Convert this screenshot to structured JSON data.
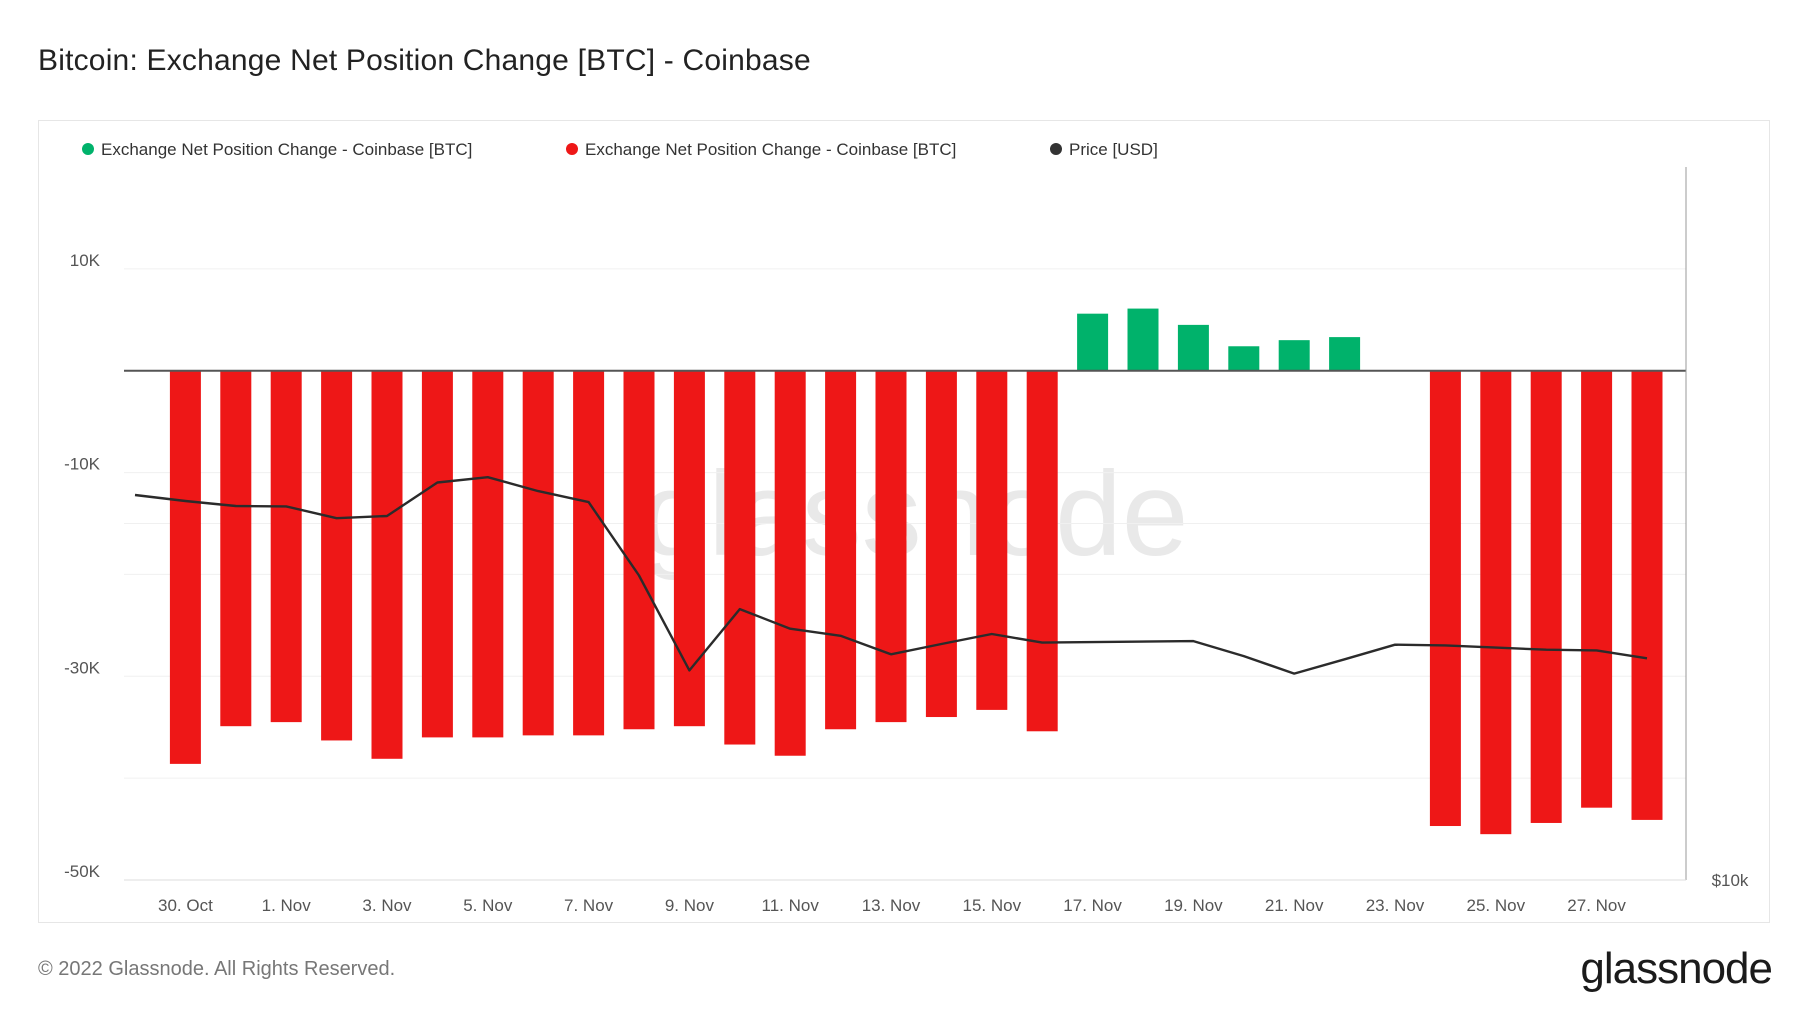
{
  "header": {
    "title": "Bitcoin: Exchange Net Position Change [BTC] - Coinbase"
  },
  "footer": {
    "copyright": "© 2022 Glassnode. All Rights Reserved.",
    "logo": "glassnode"
  },
  "watermark": "glassnode",
  "colors": {
    "positive": "#00b26b",
    "negative": "#ee1717",
    "price": "#2b2b2b",
    "zero_line": "#555555",
    "grid": "#f0f0f0"
  },
  "chart_data": {
    "type": "bar",
    "title": "Bitcoin: Exchange Net Position Change [BTC] - Coinbase",
    "legend": [
      {
        "label": "Exchange Net Position Change - Coinbase [BTC]",
        "color": "#00b26b"
      },
      {
        "label": "Exchange Net Position Change - Coinbase [BTC]",
        "color": "#ee1717"
      },
      {
        "label": "Price [USD]",
        "color": "#333333"
      }
    ],
    "legend_placement": "top-left",
    "y_ticks": [
      "10K",
      "-10K",
      "-30K",
      "-50K"
    ],
    "y_tick_values": [
      10000,
      -10000,
      -30000,
      -50000
    ],
    "ylim": [
      -50000,
      20000
    ],
    "right_axis_tick": "$10k",
    "x_tick_labels": [
      "30. Oct",
      "1. Nov",
      "3. Nov",
      "5. Nov",
      "7. Nov",
      "9. Nov",
      "11. Nov",
      "13. Nov",
      "15. Nov",
      "17. Nov",
      "19. Nov",
      "21. Nov",
      "23. Nov",
      "25. Nov",
      "27. Nov"
    ],
    "x_dates": [
      "2022-10-29",
      "2022-10-30",
      "2022-10-31",
      "2022-11-01",
      "2022-11-02",
      "2022-11-03",
      "2022-11-04",
      "2022-11-05",
      "2022-11-06",
      "2022-11-07",
      "2022-11-08",
      "2022-11-09",
      "2022-11-10",
      "2022-11-11",
      "2022-11-12",
      "2022-11-13",
      "2022-11-14",
      "2022-11-15",
      "2022-11-16",
      "2022-11-17",
      "2022-11-18",
      "2022-11-19",
      "2022-11-20",
      "2022-11-21",
      "2022-11-22",
      "2022-11-23",
      "2022-11-24",
      "2022-11-25",
      "2022-11-26",
      "2022-11-27",
      "2022-11-28",
      "2022-11-29",
      "2022-11-30"
    ],
    "bars": [
      {
        "date": "2022-10-30",
        "value": -38600
      },
      {
        "date": "2022-10-31",
        "value": -34900
      },
      {
        "date": "2022-11-01",
        "value": -34500
      },
      {
        "date": "2022-11-02",
        "value": -36300
      },
      {
        "date": "2022-11-03",
        "value": -38100
      },
      {
        "date": "2022-11-04",
        "value": -36000
      },
      {
        "date": "2022-11-05",
        "value": -36000
      },
      {
        "date": "2022-11-06",
        "value": -35800
      },
      {
        "date": "2022-11-07",
        "value": -35800
      },
      {
        "date": "2022-11-08",
        "value": -35200
      },
      {
        "date": "2022-11-09",
        "value": -34900
      },
      {
        "date": "2022-11-10",
        "value": -36700
      },
      {
        "date": "2022-11-11",
        "value": -37800
      },
      {
        "date": "2022-11-12",
        "value": -35200
      },
      {
        "date": "2022-11-13",
        "value": -34500
      },
      {
        "date": "2022-11-14",
        "value": -34000
      },
      {
        "date": "2022-11-15",
        "value": -33300
      },
      {
        "date": "2022-11-16",
        "value": -35400
      },
      {
        "date": "2022-11-17",
        "value": 5600
      },
      {
        "date": "2022-11-18",
        "value": 6100
      },
      {
        "date": "2022-11-19",
        "value": 4500
      },
      {
        "date": "2022-11-20",
        "value": 2400
      },
      {
        "date": "2022-11-21",
        "value": 3000
      },
      {
        "date": "2022-11-22",
        "value": 3300
      },
      {
        "date": "2022-11-24",
        "value": -44700
      },
      {
        "date": "2022-11-25",
        "value": -45500
      },
      {
        "date": "2022-11-26",
        "value": -44400
      },
      {
        "date": "2022-11-27",
        "value": -42900
      },
      {
        "date": "2022-11-28",
        "value": -44100
      }
    ],
    "price_series": [
      {
        "date": "2022-10-29",
        "value": 20800
      },
      {
        "date": "2022-10-30",
        "value": 20630
      },
      {
        "date": "2022-10-31",
        "value": 20490
      },
      {
        "date": "2022-11-01",
        "value": 20480
      },
      {
        "date": "2022-11-02",
        "value": 20150
      },
      {
        "date": "2022-11-03",
        "value": 20210
      },
      {
        "date": "2022-11-04",
        "value": 21150
      },
      {
        "date": "2022-11-05",
        "value": 21300
      },
      {
        "date": "2022-11-06",
        "value": 20910
      },
      {
        "date": "2022-11-07",
        "value": 20600
      },
      {
        "date": "2022-11-08",
        "value": 18540
      },
      {
        "date": "2022-11-09",
        "value": 15880
      },
      {
        "date": "2022-11-10",
        "value": 17600
      },
      {
        "date": "2022-11-11",
        "value": 17050
      },
      {
        "date": "2022-11-12",
        "value": 16850
      },
      {
        "date": "2022-11-13",
        "value": 16330
      },
      {
        "date": "2022-11-14",
        "value": 16620
      },
      {
        "date": "2022-11-15",
        "value": 16900
      },
      {
        "date": "2022-11-16",
        "value": 16660
      },
      {
        "date": "2022-11-19",
        "value": 16700
      },
      {
        "date": "2022-11-20",
        "value": 16280
      },
      {
        "date": "2022-11-21",
        "value": 15790
      },
      {
        "date": "2022-11-22",
        "value": 16190
      },
      {
        "date": "2022-11-23",
        "value": 16600
      },
      {
        "date": "2022-11-24",
        "value": 16580
      },
      {
        "date": "2022-11-25",
        "value": 16520
      },
      {
        "date": "2022-11-26",
        "value": 16460
      },
      {
        "date": "2022-11-27",
        "value": 16440
      },
      {
        "date": "2022-11-28",
        "value": 16220
      }
    ],
    "price_ylim": [
      10000,
      30000
    ],
    "grid": true
  }
}
